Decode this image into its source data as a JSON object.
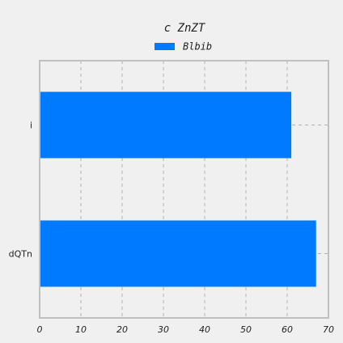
{
  "chart_data": {
    "type": "bar",
    "orientation": "horizontal",
    "title": "c ZnZT",
    "xlabel": "",
    "ylabel": "",
    "categories": [
      "i",
      "dQTn"
    ],
    "series": [
      {
        "name": "Blbib",
        "values": [
          61,
          67
        ]
      }
    ],
    "xlim": [
      0,
      70
    ],
    "xticks": [
      "0",
      "10",
      "20",
      "30",
      "40",
      "50",
      "60",
      "70"
    ],
    "grid": true,
    "legend_position": "top-center",
    "colors": {
      "bar": "#007bff",
      "background": "#f0f0f0",
      "axes_border": "#c0c0c0",
      "grid": "#b0b0b0"
    }
  }
}
